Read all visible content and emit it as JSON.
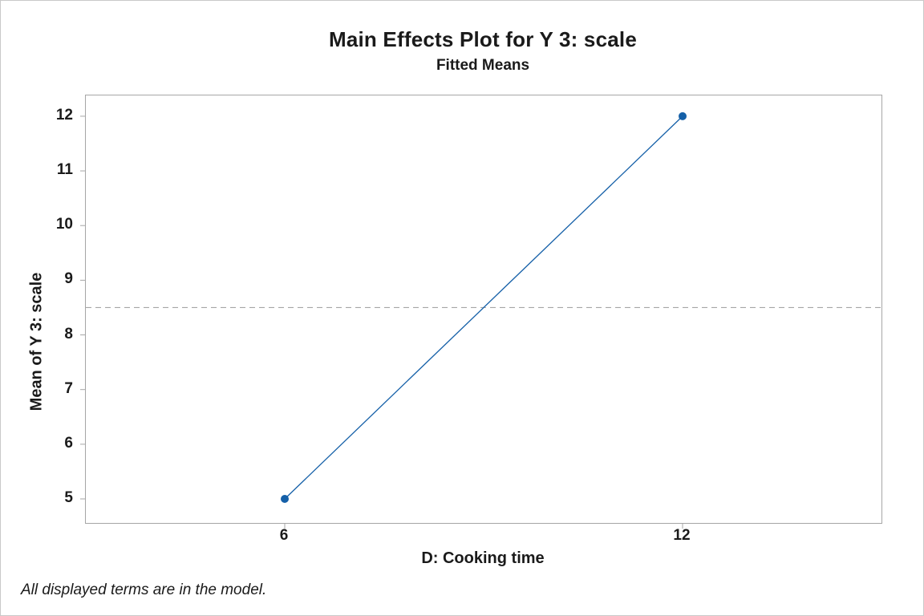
{
  "chart_data": {
    "type": "line",
    "title": "Main Effects Plot for Y 3: scale",
    "subtitle": "Fitted Means",
    "xlabel": "D: Cooking time",
    "ylabel": "Mean of Y 3: scale",
    "footnote": "All displayed terms are in the model.",
    "x": [
      6,
      12
    ],
    "y": [
      5,
      12
    ],
    "x_ticks": [
      "6",
      "12"
    ],
    "y_ticks": [
      5,
      6,
      7,
      8,
      9,
      10,
      11,
      12
    ],
    "ylim": [
      4.56,
      12.38
    ],
    "reference_line_y": 8.5,
    "grid": false,
    "legend": "none",
    "series": [
      {
        "name": "Fitted Means",
        "x": [
          6,
          12
        ],
        "y": [
          5,
          12
        ]
      }
    ],
    "colors": {
      "line": "#1560a8",
      "point": "#1560a8",
      "reference": "#a6a6a6",
      "axis": "#a6a6a6",
      "text": "#1a1a1a",
      "frame_border": "#c9c9c9"
    }
  }
}
